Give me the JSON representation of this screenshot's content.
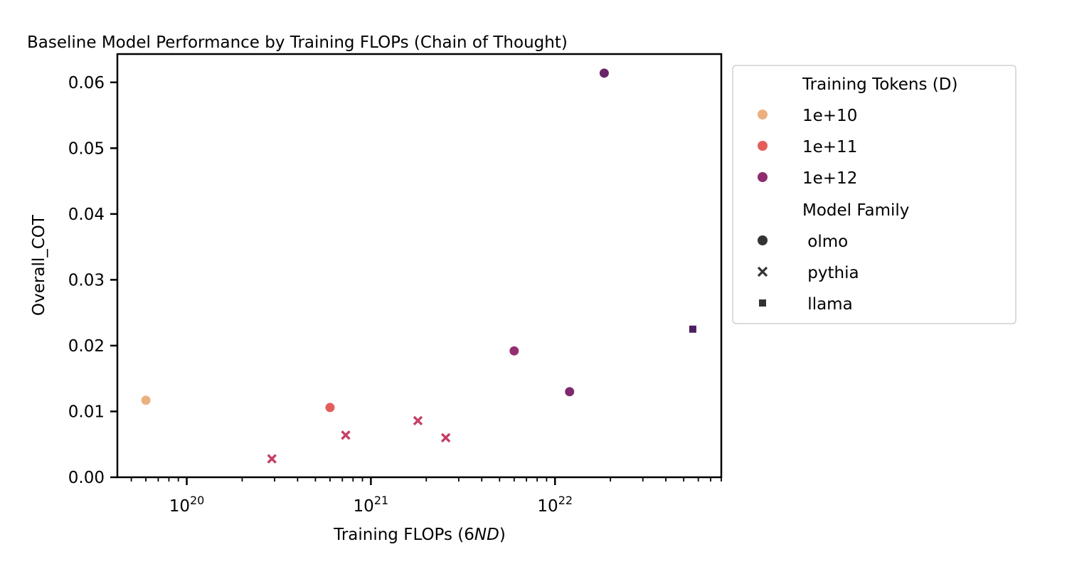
{
  "chart_data": {
    "type": "scatter",
    "title": "Baseline Model Performance by Training FLOPs (Chain of Thought)",
    "xlabel": "Training FLOPs (6",
    "xlabel_italic": "ND",
    "xlabel_close": ")",
    "ylabel": "Overall_COT",
    "xscale": "log",
    "xlim": [
      4.2e+19,
      8e+22
    ],
    "ylim": [
      0.0,
      0.0643
    ],
    "x_major_ticks": [
      {
        "value": 1e+20,
        "base": "10",
        "exp": "20"
      },
      {
        "value": 1e+21,
        "base": "10",
        "exp": "21"
      },
      {
        "value": 1e+22,
        "base": "10",
        "exp": "22"
      }
    ],
    "yticks": [
      {
        "value": 0.0,
        "label": "0.00"
      },
      {
        "value": 0.01,
        "label": "0.01"
      },
      {
        "value": 0.02,
        "label": "0.02"
      },
      {
        "value": 0.03,
        "label": "0.03"
      },
      {
        "value": 0.04,
        "label": "0.04"
      },
      {
        "value": 0.05,
        "label": "0.05"
      },
      {
        "value": 0.06,
        "label": "0.06"
      }
    ],
    "grid": false,
    "legend_placement": "outside-upper-right",
    "legend": {
      "hue_title": "Training Tokens (D)",
      "hue_entries": [
        {
          "label": "1e+10",
          "color": "#ebb07f"
        },
        {
          "label": "1e+11",
          "color": "#e35e5a"
        },
        {
          "label": "1e+12",
          "color": "#8e2c6e"
        }
      ],
      "style_title": "Model Family",
      "style_entries": [
        {
          "label": " olmo",
          "marker": "circle"
        },
        {
          "label": " pythia",
          "marker": "x"
        },
        {
          "label": " llama",
          "marker": "square"
        }
      ]
    },
    "points": [
      {
        "x": 6e+19,
        "y": 0.0117,
        "tokens": "1e+10",
        "family": "olmo",
        "color": "#ebb07f"
      },
      {
        "x": 6e+20,
        "y": 0.0106,
        "tokens": "1e+11",
        "family": "olmo",
        "color": "#e35e5a"
      },
      {
        "x": 6e+21,
        "y": 0.0192,
        "tokens": "1e+12",
        "family": "olmo",
        "color": "#942f6f"
      },
      {
        "x": 1.2e+22,
        "y": 0.013,
        "tokens": "1e+12",
        "family": "olmo",
        "color": "#7e2a6c"
      },
      {
        "x": 1.85e+22,
        "y": 0.0614,
        "tokens": "1e+12",
        "family": "olmo",
        "color": "#6a2568"
      },
      {
        "x": 2.9e+20,
        "y": 0.0028,
        "tokens": "3e+11",
        "family": "pythia",
        "color": "#c73e66"
      },
      {
        "x": 7.3e+20,
        "y": 0.0064,
        "tokens": "3e+11",
        "family": "pythia",
        "color": "#c73e66"
      },
      {
        "x": 1.8e+21,
        "y": 0.0086,
        "tokens": "3e+11",
        "family": "pythia",
        "color": "#c73e66"
      },
      {
        "x": 2.55e+21,
        "y": 0.006,
        "tokens": "3e+11",
        "family": "pythia",
        "color": "#c73e66"
      },
      {
        "x": 5.6e+22,
        "y": 0.0225,
        "tokens": "2e+12",
        "family": "llama",
        "color": "#4e1f60"
      }
    ]
  }
}
